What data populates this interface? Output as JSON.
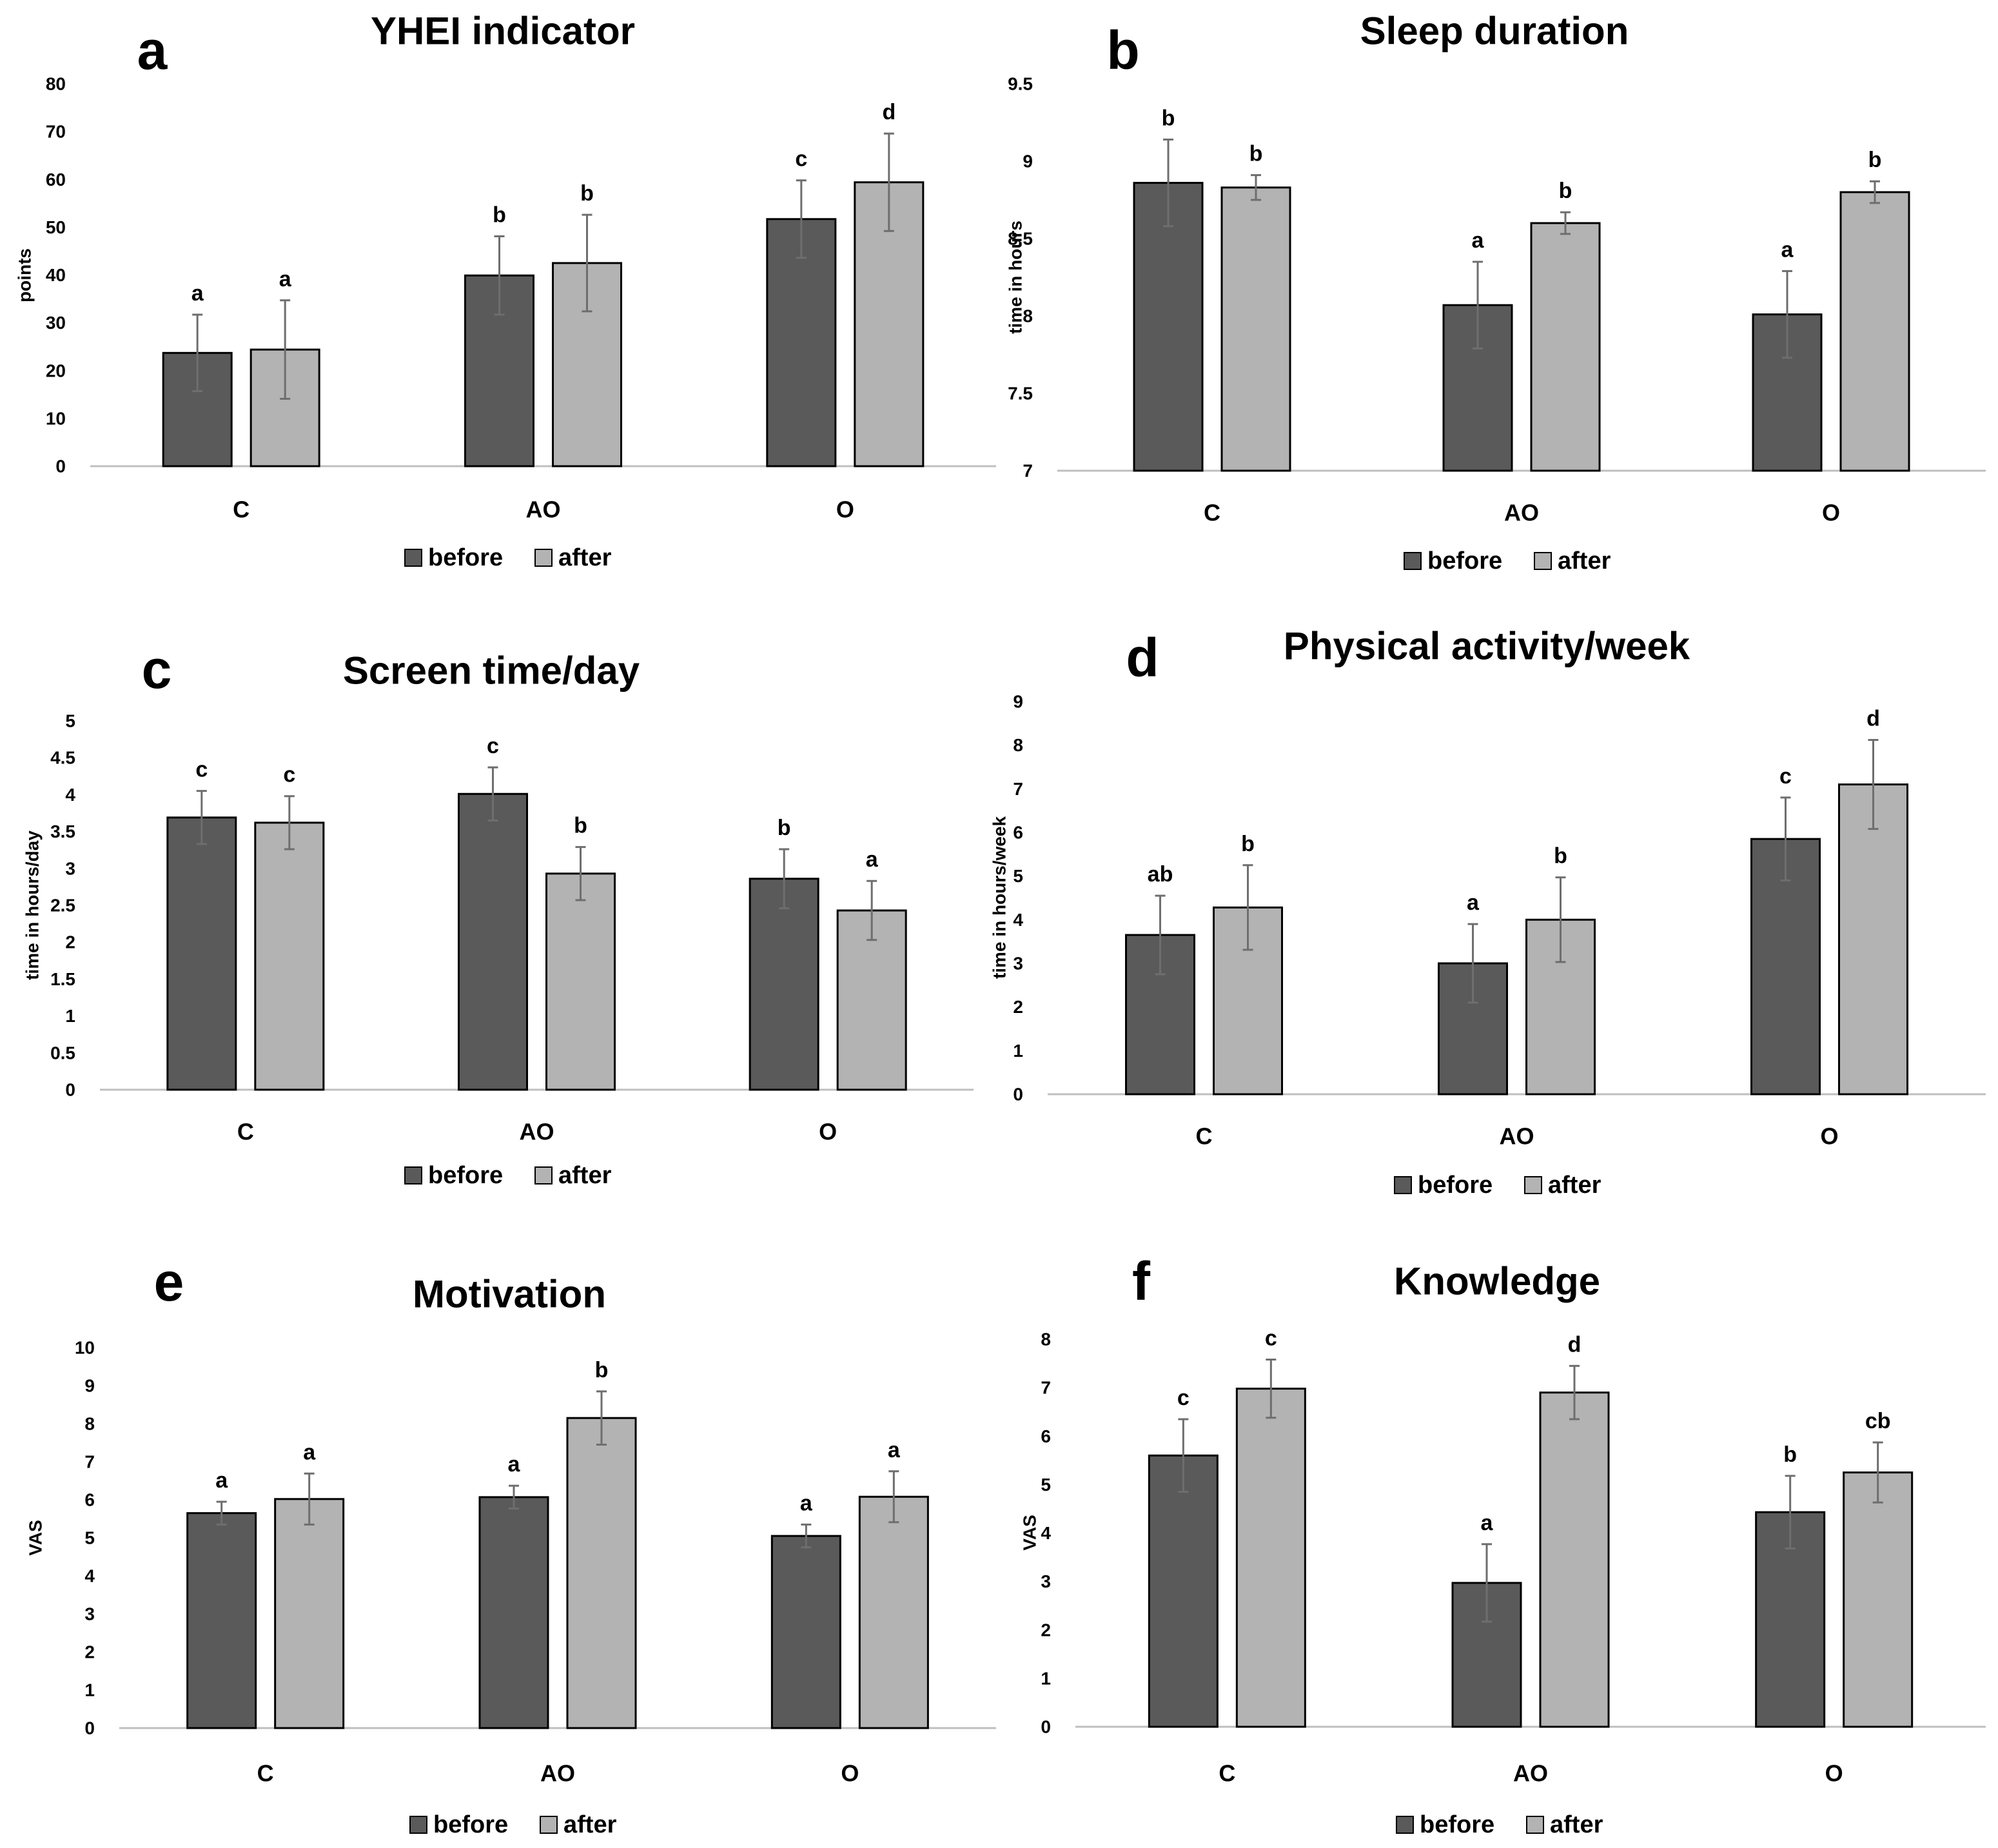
{
  "legend": [
    "before",
    "after"
  ],
  "colors": {
    "before": "#5a5a5a",
    "after": "#b3b3b3",
    "bar_edge": "#000000",
    "axis": "#bfbfbf",
    "error_bar": "#6e6e6e"
  },
  "chart_data": [
    {
      "panel": "a",
      "type": "bar",
      "title": "YHEI indicator",
      "ylabel": "points",
      "xlabel": "",
      "categories": [
        "C",
        "AO",
        "O"
      ],
      "ylim": [
        0,
        80
      ],
      "yticks": [
        "0",
        "10",
        "20",
        "30",
        "40",
        "50",
        "60",
        "70",
        "80"
      ],
      "grid": false,
      "legend_position": "bottom",
      "series": [
        {
          "name": "before",
          "values": [
            23.7,
            39.9,
            51.7
          ],
          "errors": [
            8.0,
            8.2,
            8.1
          ],
          "labels": [
            "a",
            "b",
            "c"
          ]
        },
        {
          "name": "after",
          "values": [
            24.4,
            42.5,
            59.4
          ],
          "errors": [
            10.3,
            10.1,
            10.2
          ],
          "labels": [
            "a",
            "b",
            "d"
          ]
        }
      ]
    },
    {
      "panel": "b",
      "type": "bar",
      "title": "Sleep duration",
      "ylabel": "time in hours",
      "xlabel": "",
      "categories": [
        "C",
        "AO",
        "O"
      ],
      "ylim": [
        7,
        9.5
      ],
      "yticks": [
        "7",
        "7.5",
        "8",
        "8.5",
        "9",
        "9.5"
      ],
      "grid": false,
      "legend_position": "bottom",
      "series": [
        {
          "name": "before",
          "values": [
            8.86,
            8.07,
            8.01
          ],
          "errors": [
            0.28,
            0.28,
            0.28
          ],
          "labels": [
            "b",
            "a",
            "a"
          ]
        },
        {
          "name": "after",
          "values": [
            8.83,
            8.6,
            8.8
          ],
          "errors": [
            0.08,
            0.07,
            0.07
          ],
          "labels": [
            "b",
            "b",
            "b"
          ]
        }
      ]
    },
    {
      "panel": "c",
      "type": "bar",
      "title": "Screen time/day",
      "ylabel": "time in hours/day",
      "xlabel": "",
      "categories": [
        "C",
        "AO",
        "O"
      ],
      "ylim": [
        0,
        5
      ],
      "yticks": [
        "0",
        "0.5",
        "1",
        "1.5",
        "2",
        "2.5",
        "3",
        "3.5",
        "4",
        "4.5",
        "5"
      ],
      "grid": false,
      "legend_position": "bottom",
      "series": [
        {
          "name": "before",
          "values": [
            3.69,
            4.01,
            2.86
          ],
          "errors": [
            0.36,
            0.36,
            0.4
          ],
          "labels": [
            "c",
            "c",
            "b"
          ]
        },
        {
          "name": "after",
          "values": [
            3.62,
            2.93,
            2.43
          ],
          "errors": [
            0.36,
            0.36,
            0.4
          ],
          "labels": [
            "c",
            "b",
            "a"
          ]
        }
      ]
    },
    {
      "panel": "d",
      "type": "bar",
      "title": "Physical activity/week",
      "ylabel": "time in hours/week",
      "xlabel": "",
      "categories": [
        "C",
        "AO",
        "O"
      ],
      "ylim": [
        0,
        9
      ],
      "yticks": [
        "0",
        "1",
        "2",
        "3",
        "4",
        "5",
        "6",
        "7",
        "8",
        "9"
      ],
      "grid": false,
      "legend_position": "bottom",
      "series": [
        {
          "name": "before",
          "values": [
            3.65,
            3.0,
            5.85
          ],
          "errors": [
            0.9,
            0.9,
            0.95
          ],
          "labels": [
            "ab",
            "a",
            "c"
          ]
        },
        {
          "name": "after",
          "values": [
            4.28,
            4.0,
            7.1
          ],
          "errors": [
            0.97,
            0.97,
            1.02
          ],
          "labels": [
            "b",
            "b",
            "d"
          ]
        }
      ]
    },
    {
      "panel": "e",
      "type": "bar",
      "title": "Motivation",
      "ylabel": "VAS",
      "xlabel": "",
      "categories": [
        "C",
        "AO",
        "O"
      ],
      "ylim": [
        0,
        10
      ],
      "yticks": [
        "0",
        "1",
        "2",
        "3",
        "4",
        "5",
        "6",
        "7",
        "8",
        "9",
        "10"
      ],
      "grid": false,
      "legend_position": "bottom",
      "series": [
        {
          "name": "before",
          "values": [
            5.65,
            6.07,
            5.05
          ],
          "errors": [
            0.3,
            0.3,
            0.3
          ],
          "labels": [
            "a",
            "a",
            "a"
          ]
        },
        {
          "name": "after",
          "values": [
            6.02,
            8.15,
            6.08
          ],
          "errors": [
            0.67,
            0.7,
            0.67
          ],
          "labels": [
            "a",
            "b",
            "a"
          ]
        }
      ]
    },
    {
      "panel": "f",
      "type": "bar",
      "title": "Knowledge",
      "ylabel": "VAS",
      "xlabel": "",
      "categories": [
        "C",
        "AO",
        "O"
      ],
      "ylim": [
        0,
        8
      ],
      "yticks": [
        "0",
        "1",
        "2",
        "3",
        "4",
        "5",
        "6",
        "7",
        "8"
      ],
      "grid": false,
      "legend_position": "bottom",
      "series": [
        {
          "name": "before",
          "values": [
            5.6,
            2.97,
            4.43
          ],
          "errors": [
            0.75,
            0.8,
            0.75
          ],
          "labels": [
            "c",
            "a",
            "b"
          ]
        },
        {
          "name": "after",
          "values": [
            6.98,
            6.9,
            5.25
          ],
          "errors": [
            0.6,
            0.55,
            0.62
          ],
          "labels": [
            "c",
            "d",
            "cb"
          ]
        }
      ]
    }
  ]
}
